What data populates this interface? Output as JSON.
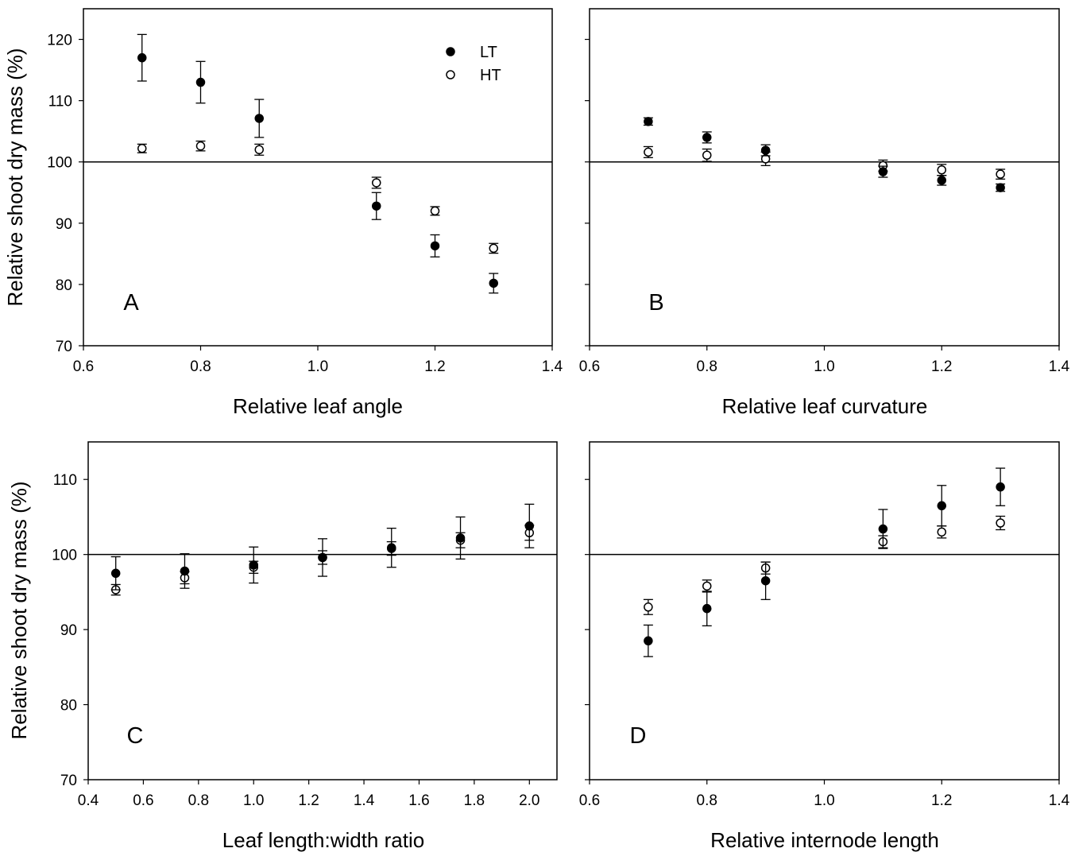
{
  "chart_data": [
    {
      "type": "scatter",
      "panel_label": "A",
      "xlabel": "Relative leaf angle",
      "ylabel": "Relative shoot dry mass (%)",
      "xlim": [
        0.6,
        1.4
      ],
      "ylim": [
        70,
        125
      ],
      "x_ticks": [
        0.6,
        0.8,
        1.0,
        1.2,
        1.4
      ],
      "x_tick_labels": [
        "0.6",
        "0.8",
        "1.0",
        "1.2",
        "1.4"
      ],
      "y_ticks": [
        70,
        80,
        90,
        100,
        110,
        120
      ],
      "y_tick_labels": [
        "70",
        "80",
        "90",
        "100",
        "110",
        "120"
      ],
      "reference_line": 100,
      "legend": {
        "position": "top-right",
        "entries": [
          {
            "label": "LT",
            "marker": "filled-circle"
          },
          {
            "label": "HT",
            "marker": "open-circle"
          }
        ]
      },
      "series": [
        {
          "name": "LT",
          "marker": "filled",
          "x": [
            0.7,
            0.8,
            0.9,
            1.1,
            1.2,
            1.3
          ],
          "y": [
            117.0,
            113.0,
            107.1,
            92.8,
            86.3,
            80.2
          ],
          "err": [
            3.8,
            3.4,
            3.1,
            2.2,
            1.8,
            1.6
          ]
        },
        {
          "name": "HT",
          "marker": "open",
          "x": [
            0.7,
            0.8,
            0.9,
            1.1,
            1.2,
            1.3
          ],
          "y": [
            102.2,
            102.6,
            102.0,
            96.6,
            92.0,
            85.9
          ],
          "err": [
            0.7,
            0.8,
            0.9,
            0.9,
            0.7,
            0.8
          ]
        }
      ]
    },
    {
      "type": "scatter",
      "panel_label": "B",
      "xlabel": "Relative leaf curvature",
      "ylabel": "",
      "xlim": [
        0.6,
        1.4
      ],
      "ylim": [
        70,
        125
      ],
      "x_ticks": [
        0.6,
        0.8,
        1.0,
        1.2,
        1.4
      ],
      "x_tick_labels": [
        "0.6",
        "0.8",
        "1.0",
        "1.2",
        "1.4"
      ],
      "y_ticks": [
        70,
        80,
        90,
        100,
        110,
        120
      ],
      "y_tick_labels": [],
      "reference_line": 100,
      "series": [
        {
          "name": "LT",
          "marker": "filled",
          "x": [
            0.7,
            0.8,
            0.9,
            1.1,
            1.2,
            1.3
          ],
          "y": [
            106.6,
            104.0,
            101.9,
            98.4,
            97.0,
            95.8
          ],
          "err": [
            0.6,
            0.9,
            0.9,
            0.9,
            0.8,
            0.6
          ]
        },
        {
          "name": "HT",
          "marker": "open",
          "x": [
            0.7,
            0.8,
            0.9,
            1.1,
            1.2,
            1.3
          ],
          "y": [
            101.6,
            101.1,
            100.5,
            99.4,
            98.7,
            98.0
          ],
          "err": [
            0.9,
            1.0,
            1.1,
            0.9,
            0.9,
            0.8
          ]
        }
      ]
    },
    {
      "type": "scatter",
      "panel_label": "C",
      "xlabel": "Leaf length:width ratio",
      "ylabel": "Relative shoot dry mass (%)",
      "xlim": [
        0.4,
        2.1
      ],
      "ylim": [
        70,
        115
      ],
      "x_ticks": [
        0.4,
        0.6,
        0.8,
        1.0,
        1.2,
        1.4,
        1.6,
        1.8,
        2.0
      ],
      "x_tick_labels": [
        "0.4",
        "0.6",
        "0.8",
        "1.0",
        "1.2",
        "1.4",
        "1.6",
        "1.8",
        "2.0"
      ],
      "y_ticks": [
        70,
        80,
        90,
        100,
        110
      ],
      "y_tick_labels": [
        "70",
        "80",
        "90",
        "100",
        "110"
      ],
      "reference_line": 100,
      "series": [
        {
          "name": "LT",
          "marker": "filled",
          "x": [
            0.5,
            0.75,
            1.0,
            1.25,
            1.5,
            1.75,
            2.0
          ],
          "y": [
            97.5,
            97.8,
            98.6,
            99.6,
            100.9,
            102.2,
            103.8
          ],
          "err": [
            2.2,
            2.3,
            2.4,
            2.5,
            2.6,
            2.8,
            2.9
          ]
        },
        {
          "name": "HT",
          "marker": "open",
          "x": [
            0.5,
            0.75,
            1.0,
            1.25,
            1.5,
            1.75,
            2.0
          ],
          "y": [
            95.3,
            96.9,
            98.3,
            99.6,
            100.8,
            101.9,
            102.9
          ],
          "err": [
            0.7,
            0.8,
            0.8,
            0.9,
            0.9,
            1.0,
            1.0
          ]
        }
      ]
    },
    {
      "type": "scatter",
      "panel_label": "D",
      "xlabel": "Relative internode length",
      "ylabel": "",
      "xlim": [
        0.6,
        1.4
      ],
      "ylim": [
        70,
        115
      ],
      "x_ticks": [
        0.6,
        0.8,
        1.0,
        1.2,
        1.4
      ],
      "x_tick_labels": [
        "0.6",
        "0.8",
        "1.0",
        "1.2",
        "1.4"
      ],
      "y_ticks": [
        70,
        80,
        90,
        100,
        110
      ],
      "y_tick_labels": [],
      "reference_line": 100,
      "series": [
        {
          "name": "LT",
          "marker": "filled",
          "x": [
            0.7,
            0.8,
            0.9,
            1.1,
            1.2,
            1.3
          ],
          "y": [
            88.5,
            92.8,
            96.5,
            103.4,
            106.5,
            109.0
          ],
          "err": [
            2.1,
            2.3,
            2.5,
            2.6,
            2.7,
            2.5
          ]
        },
        {
          "name": "HT",
          "marker": "open",
          "x": [
            0.7,
            0.8,
            0.9,
            1.1,
            1.2,
            1.3
          ],
          "y": [
            93.0,
            95.8,
            98.2,
            101.7,
            103.0,
            104.2
          ],
          "err": [
            1.0,
            0.8,
            0.8,
            0.8,
            0.8,
            0.9
          ]
        }
      ]
    }
  ]
}
